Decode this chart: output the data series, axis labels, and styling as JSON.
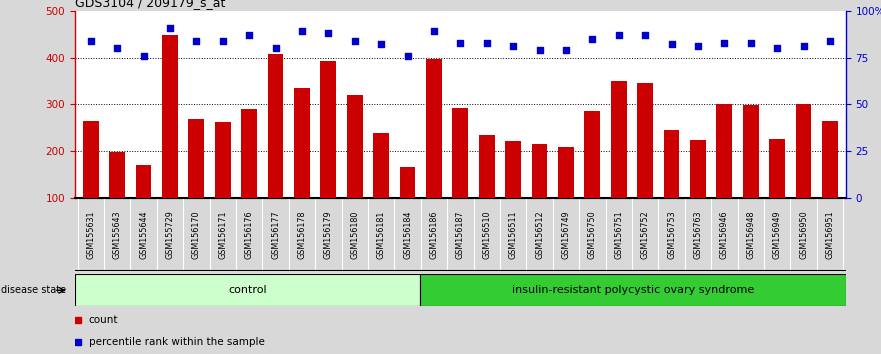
{
  "title": "GDS3104 / 209179_s_at",
  "categories": [
    "GSM155631",
    "GSM155643",
    "GSM155644",
    "GSM155729",
    "GSM156170",
    "GSM156171",
    "GSM156176",
    "GSM156177",
    "GSM156178",
    "GSM156179",
    "GSM156180",
    "GSM156181",
    "GSM156184",
    "GSM156186",
    "GSM156187",
    "GSM156510",
    "GSM156511",
    "GSM156512",
    "GSM156749",
    "GSM156750",
    "GSM156751",
    "GSM156752",
    "GSM156753",
    "GSM156763",
    "GSM156946",
    "GSM156948",
    "GSM156949",
    "GSM156950",
    "GSM156951"
  ],
  "counts": [
    265,
    198,
    170,
    447,
    268,
    263,
    290,
    408,
    335,
    392,
    320,
    240,
    167,
    397,
    292,
    235,
    222,
    215,
    210,
    285,
    350,
    346,
    245,
    225,
    300,
    298,
    226,
    300,
    265
  ],
  "percentiles": [
    84,
    80,
    76,
    91,
    84,
    84,
    87,
    80,
    89,
    88,
    84,
    82,
    76,
    89,
    83,
    83,
    81,
    79,
    79,
    85,
    87,
    87,
    82,
    81,
    83,
    83,
    80,
    81,
    84
  ],
  "control_count": 13,
  "disease_count": 16,
  "bar_color": "#cc0000",
  "dot_color": "#0000cc",
  "control_color": "#ccffcc",
  "disease_color": "#33cc33",
  "ylim_left": [
    100,
    500
  ],
  "ylim_right": [
    0,
    100
  ],
  "yticks_left": [
    100,
    200,
    300,
    400,
    500
  ],
  "ytick_labels_left": [
    "100",
    "200",
    "300",
    "400",
    "500"
  ],
  "yticks_right": [
    0,
    25,
    50,
    75,
    100
  ],
  "ytick_labels_right": [
    "0",
    "25",
    "50",
    "75",
    "100%"
  ],
  "grid_values": [
    200,
    300,
    400
  ],
  "control_label": "control",
  "disease_label": "insulin-resistant polycystic ovary syndrome",
  "disease_state_label": "disease state",
  "legend_count_label": "count",
  "legend_percentile_label": "percentile rank within the sample",
  "bg_color": "#d8d8d8",
  "plot_bg_color": "#ffffff",
  "xtick_bg_color": "#c8c8c8"
}
